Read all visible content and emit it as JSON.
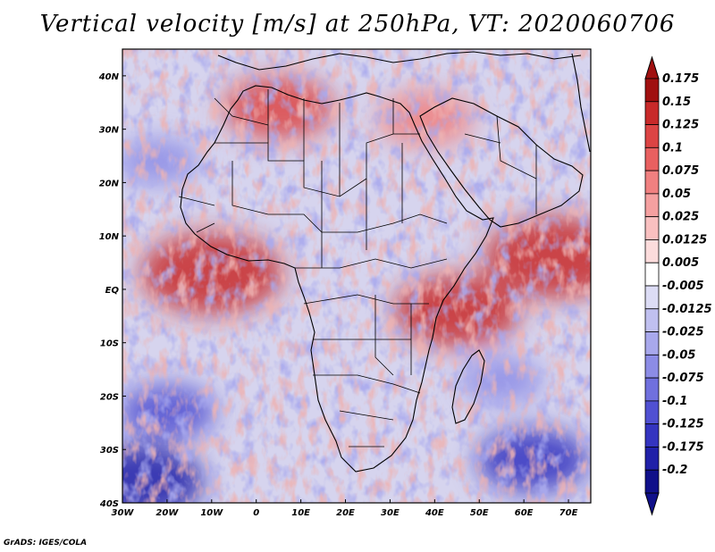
{
  "title": "Vertical velocity [m/s] at 250hPa, VT: 2020060706",
  "footer": "GrADS: IGES/COLA",
  "map": {
    "lon_range": [
      -30,
      75
    ],
    "lat_range": [
      -40,
      45
    ],
    "lon_ticks": [
      "30W",
      "20W",
      "10W",
      "0",
      "10E",
      "20E",
      "30E",
      "40E",
      "50E",
      "60E",
      "70E"
    ],
    "lat_ticks": [
      "40N",
      "30N",
      "20N",
      "10N",
      "EQ",
      "10S",
      "20S",
      "30S",
      "40S"
    ],
    "lon_tick_values": [
      -30,
      -20,
      -10,
      0,
      10,
      20,
      30,
      40,
      50,
      60,
      70
    ],
    "lat_tick_values": [
      40,
      30,
      20,
      10,
      0,
      -10,
      -20,
      -30,
      -40
    ]
  },
  "colorbar": {
    "labels": [
      "0.175",
      "0.15",
      "0.125",
      "0.1",
      "0.075",
      "0.05",
      "0.025",
      "0.0125",
      "0.005",
      "-0.005",
      "-0.0125",
      "-0.025",
      "-0.05",
      "-0.075",
      "-0.1",
      "-0.125",
      "-0.175",
      "-0.2"
    ],
    "colors": [
      "#a01010",
      "#c82a2a",
      "#dc4444",
      "#e86060",
      "#f08080",
      "#f5a0a0",
      "#f9c0c0",
      "#fcdcdc",
      "#ffffff",
      "#dcdcf5",
      "#c0c0f0",
      "#a8a8ec",
      "#8c8ce6",
      "#7070de",
      "#5050d2",
      "#3434c0",
      "#2020a8",
      "#10108a"
    ]
  },
  "features": [
    {
      "name": "strong-ascent-gulf-of-guinea",
      "lon": -10,
      "lat": 3,
      "value": 0.15
    },
    {
      "name": "strong-ascent-arabian-sea",
      "lon": 67,
      "lat": 6,
      "value": 0.15
    },
    {
      "name": "strong-ascent-east-africa-coast",
      "lon": 45,
      "lat": -4,
      "value": 0.125
    },
    {
      "name": "ascent-north-africa",
      "lon": 5,
      "lat": 34,
      "value": 0.1
    },
    {
      "name": "ascent-red-sea",
      "lon": 38,
      "lat": 32,
      "value": 0.075
    },
    {
      "name": "descent-south-atlantic",
      "lon": -20,
      "lat": -23,
      "value": -0.075
    },
    {
      "name": "descent-southwest-atlantic",
      "lon": -26,
      "lat": -36,
      "value": -0.125
    },
    {
      "name": "descent-southern-indian-ocean",
      "lon": 62,
      "lat": -32,
      "value": -0.1
    },
    {
      "name": "descent-west-indian-ocean",
      "lon": 55,
      "lat": -17,
      "value": -0.05
    },
    {
      "name": "descent-north-atlantic",
      "lon": -22,
      "lat": 24,
      "value": -0.05
    }
  ]
}
